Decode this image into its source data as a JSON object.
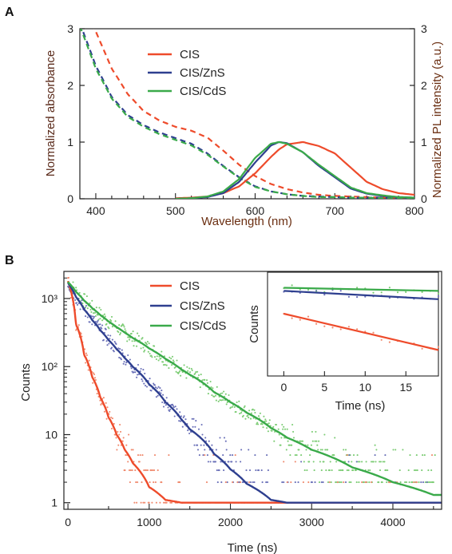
{
  "colors": {
    "cis": "#ee4b2b",
    "cis_zns": "#2e3f8f",
    "cis_cds": "#3aaa4a",
    "axis": "#222222",
    "right_axis": "#8b4513",
    "left_title": "#5a2a1a",
    "right_title": "#6b2f12",
    "bottom_title": "#6b2f12"
  },
  "panel_a": {
    "letter": "A",
    "xlabel": "Wavelength (nm)",
    "ylabel_left": "Normalized absorbance",
    "ylabel_right": "Normalized PL intensity (a.u.)",
    "legend": [
      "CIS",
      "CIS/ZnS",
      "CIS/CdS"
    ]
  },
  "panel_b": {
    "letter": "B",
    "xlabel": "Time (ns)",
    "ylabel": "Counts",
    "legend": [
      "CIS",
      "CIS/ZnS",
      "CIS/CdS"
    ],
    "inset": {
      "xlabel": "Time (ns)",
      "ylabel": "Counts"
    }
  },
  "chart_data": [
    {
      "type": "line",
      "panel": "A",
      "xlabel": "Wavelength (nm)",
      "ylabel": "Normalized absorbance",
      "ylabel_right": "Normalized PL intensity (a.u.)",
      "xlim": [
        380,
        800
      ],
      "ylim": [
        0,
        3
      ],
      "ylim_right": [
        0,
        3
      ],
      "xticks": [
        400,
        500,
        600,
        700,
        800
      ],
      "yticks": [
        0,
        1,
        2,
        3
      ],
      "yticks_right": [
        0,
        1,
        2,
        3
      ],
      "legend_position": "top-center",
      "absorbance_style": "dashed",
      "pl_style": "solid",
      "absorbance": {
        "x": [
          380,
          400,
          420,
          440,
          460,
          480,
          500,
          520,
          540,
          560,
          580,
          600,
          620,
          640,
          660,
          680,
          700,
          720,
          740,
          760,
          780,
          800
        ],
        "series": [
          {
            "name": "CIS",
            "values": [
              3.55,
              2.95,
              2.3,
              1.85,
              1.55,
              1.38,
              1.27,
              1.2,
              1.08,
              0.85,
              0.6,
              0.4,
              0.26,
              0.17,
              0.11,
              0.07,
              0.05,
              0.04,
              0.03,
              0.02,
              0.02,
              0.02
            ]
          },
          {
            "name": "CIS/ZnS",
            "values": [
              3.1,
              2.35,
              1.8,
              1.48,
              1.3,
              1.17,
              1.07,
              0.97,
              0.8,
              0.58,
              0.38,
              0.22,
              0.13,
              0.08,
              0.05,
              0.04,
              0.03,
              0.02,
              0.02,
              0.02,
              0.01,
              0.01
            ]
          },
          {
            "name": "CIS/CdS",
            "values": [
              3.05,
              2.3,
              1.77,
              1.45,
              1.27,
              1.14,
              1.04,
              0.94,
              0.78,
              0.57,
              0.37,
              0.21,
              0.13,
              0.08,
              0.05,
              0.03,
              0.03,
              0.02,
              0.02,
              0.01,
              0.01,
              0.01
            ]
          }
        ]
      },
      "pl": {
        "x": [
          500,
          520,
          540,
          560,
          580,
          600,
          620,
          630,
          640,
          660,
          680,
          700,
          720,
          740,
          760,
          780,
          800
        ],
        "series": [
          {
            "name": "CIS",
            "values": [
              0.01,
              0.02,
              0.04,
              0.1,
              0.22,
              0.45,
              0.74,
              0.87,
              0.96,
              1.0,
              0.93,
              0.8,
              0.55,
              0.3,
              0.17,
              0.1,
              0.07
            ]
          },
          {
            "name": "CIS/ZnS",
            "values": [
              0.0,
              0.01,
              0.03,
              0.1,
              0.3,
              0.64,
              0.94,
              1.0,
              0.98,
              0.82,
              0.58,
              0.38,
              0.18,
              0.09,
              0.05,
              0.03,
              0.02
            ]
          },
          {
            "name": "CIS/CdS",
            "values": [
              0.0,
              0.01,
              0.04,
              0.13,
              0.35,
              0.72,
              0.97,
              1.0,
              0.97,
              0.82,
              0.6,
              0.4,
              0.2,
              0.1,
              0.06,
              0.03,
              0.02
            ]
          }
        ]
      }
    },
    {
      "type": "scatter",
      "panel": "B",
      "xlabel": "Time (ns)",
      "ylabel": "Counts",
      "y_scale": "log",
      "xlim": [
        -50,
        4600
      ],
      "ylim": [
        0.8,
        2500
      ],
      "xticks": [
        0,
        1000,
        2000,
        3000,
        4000
      ],
      "yticks": [
        1,
        10,
        100,
        1000
      ],
      "ytick_labels": [
        "1",
        "10",
        "10²",
        "10³"
      ],
      "legend_position": "top-center",
      "fits": {
        "x": [
          0,
          100,
          200,
          300,
          400,
          500,
          600,
          700,
          800,
          1000,
          1200,
          1400,
          1500,
          1800,
          2000,
          2200,
          2500,
          2700,
          3000,
          3500,
          4000,
          4500
        ],
        "series": [
          {
            "name": "CIS",
            "values": [
              1800,
              420,
              150,
              70,
              35,
              18,
              10,
              6,
              3.8,
              1.7,
              1.1,
              1.0,
              1.0,
              1.0,
              1.0,
              1.0,
              1.0,
              1.0,
              1.0,
              1.0,
              1.0,
              1.0
            ]
          },
          {
            "name": "CIS/ZnS",
            "values": [
              1700,
              1050,
              690,
              480,
              340,
              245,
              180,
              133,
              99,
              55,
              30,
              16.5,
              12,
              5.2,
              3.1,
              1.9,
              1.1,
              1.0,
              1.0,
              1.0,
              1.0,
              1.0
            ]
          },
          {
            "name": "CIS/CdS",
            "values": [
              1750,
              1250,
              930,
              720,
              570,
              460,
              380,
              315,
              262,
              185,
              130,
              90,
              76,
              42,
              30,
              21,
              12.5,
              9,
              6,
              3.3,
              2,
              1.3
            ]
          }
        ]
      },
      "inset": {
        "type": "line",
        "xlabel": "Time (ns)",
        "ylabel": "Counts",
        "xlim": [
          -2,
          19
        ],
        "xticks": [
          0,
          5,
          10,
          15
        ],
        "fits": {
          "x": [
            0,
            19
          ],
          "series": [
            {
              "name": "CIS",
              "values": [
                0.6,
                0.25
              ]
            },
            {
              "name": "CIS/ZnS",
              "values": [
                0.82,
                0.74
              ]
            },
            {
              "name": "CIS/CdS",
              "values": [
                0.85,
                0.82
              ]
            }
          ]
        }
      }
    }
  ]
}
